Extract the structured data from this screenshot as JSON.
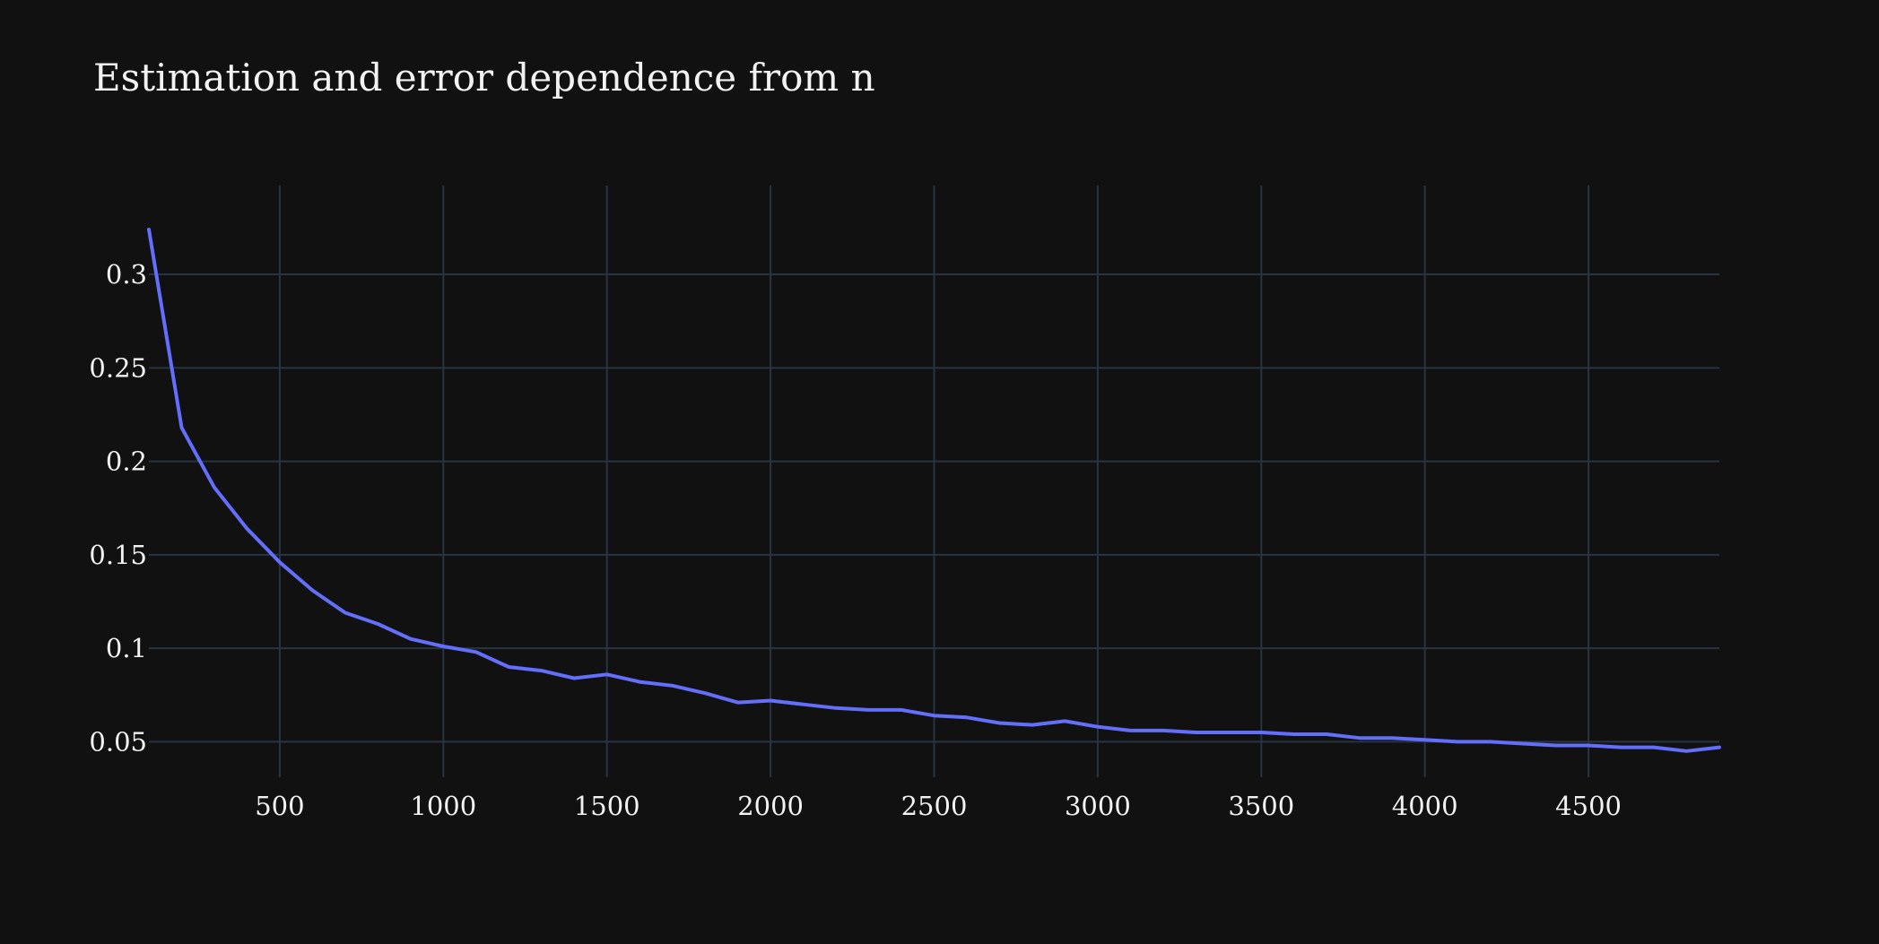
{
  "chart_data": {
    "type": "line",
    "title": "Estimation and error dependence from n",
    "xlabel": "",
    "ylabel": "",
    "xlim": [
      100,
      4900
    ],
    "ylim": [
      0.031,
      0.3475
    ],
    "x_ticks": [
      500,
      1000,
      1500,
      2000,
      2500,
      3000,
      3500,
      4000,
      4500
    ],
    "x_tick_labels": [
      "500",
      "1000",
      "1500",
      "2000",
      "2500",
      "3000",
      "3500",
      "4000",
      "4500"
    ],
    "y_ticks": [
      0.05,
      0.1,
      0.15,
      0.2,
      0.25,
      0.3
    ],
    "y_tick_labels": [
      "0.05",
      "0.1",
      "0.15",
      "0.2",
      "0.25",
      "0.3"
    ],
    "grid": true,
    "legend": "none",
    "series": [
      {
        "color": "#636efa",
        "x": [
          100,
          200,
          300,
          400,
          500,
          600,
          700,
          800,
          900,
          1000,
          1100,
          1200,
          1300,
          1400,
          1500,
          1600,
          1700,
          1800,
          1900,
          2000,
          2100,
          2200,
          2300,
          2400,
          2500,
          2600,
          2700,
          2800,
          2900,
          3000,
          3100,
          3200,
          3300,
          3400,
          3500,
          3600,
          3700,
          3800,
          3900,
          4000,
          4100,
          4200,
          4300,
          4400,
          4500,
          4600,
          4700,
          4800,
          4900
        ],
        "y": [
          0.324,
          0.218,
          0.186,
          0.164,
          0.146,
          0.131,
          0.119,
          0.113,
          0.105,
          0.101,
          0.098,
          0.09,
          0.088,
          0.084,
          0.086,
          0.082,
          0.08,
          0.076,
          0.071,
          0.072,
          0.07,
          0.068,
          0.067,
          0.067,
          0.064,
          0.063,
          0.06,
          0.059,
          0.061,
          0.058,
          0.056,
          0.056,
          0.055,
          0.055,
          0.055,
          0.054,
          0.054,
          0.052,
          0.052,
          0.051,
          0.05,
          0.05,
          0.049,
          0.048,
          0.048,
          0.047,
          0.047,
          0.045,
          0.047
        ]
      }
    ]
  }
}
